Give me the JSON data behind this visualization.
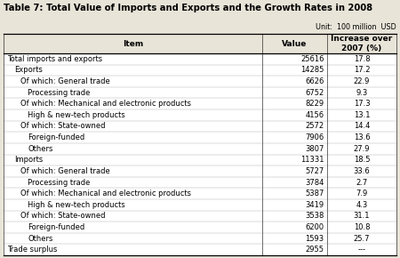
{
  "title": "Table 7: Total Value of Imports and Exports and the Growth Rates in 2008",
  "unit": "Unit:  100 million  USD",
  "col_headers": [
    "Item",
    "Value",
    "Increase over\n2007 (%)"
  ],
  "rows": [
    {
      "item": "Total imports and exports",
      "value": "25616",
      "increase": "17.8",
      "indent": 0
    },
    {
      "item": "Exports",
      "value": "14285",
      "increase": "17.2",
      "indent": 1
    },
    {
      "item": "Of which: General trade",
      "value": "6626",
      "increase": "22.9",
      "indent": 2
    },
    {
      "item": "Processing trade",
      "value": "6752",
      "increase": "9.3",
      "indent": 3
    },
    {
      "item": "Of which: Mechanical and electronic products",
      "value": "8229",
      "increase": "17.3",
      "indent": 2
    },
    {
      "item": "High & new-tech products",
      "value": "4156",
      "increase": "13.1",
      "indent": 3
    },
    {
      "item": "Of which: State-owned",
      "value": "2572",
      "increase": "14.4",
      "indent": 2
    },
    {
      "item": "Foreign-funded",
      "value": "7906",
      "increase": "13.6",
      "indent": 3
    },
    {
      "item": "Others",
      "value": "3807",
      "increase": "27.9",
      "indent": 3
    },
    {
      "item": "Imports",
      "value": "11331",
      "increase": "18.5",
      "indent": 1
    },
    {
      "item": "Of which: General trade",
      "value": "5727",
      "increase": "33.6",
      "indent": 2
    },
    {
      "item": "Processing trade",
      "value": "3784",
      "increase": "2.7",
      "indent": 3
    },
    {
      "item": "Of which: Mechanical and electronic products",
      "value": "5387",
      "increase": "7.9",
      "indent": 2
    },
    {
      "item": "High & new-tech products",
      "value": "3419",
      "increase": "4.3",
      "indent": 3
    },
    {
      "item": "Of which: State-owned",
      "value": "3538",
      "increase": "31.1",
      "indent": 2
    },
    {
      "item": "Foreign-funded",
      "value": "6200",
      "increase": "10.8",
      "indent": 3
    },
    {
      "item": "Others",
      "value": "1593",
      "increase": "25.7",
      "indent": 3
    },
    {
      "item": "Trade surplus",
      "value": "2955",
      "increase": "---",
      "indent": 0
    }
  ],
  "bg_color": "#e8e4d8",
  "table_bg": "#ffffff",
  "border_color": "#000000",
  "title_fontsize": 7.2,
  "header_fontsize": 6.5,
  "cell_fontsize": 6.0,
  "indent_sizes": [
    0.0,
    0.018,
    0.034,
    0.052
  ]
}
